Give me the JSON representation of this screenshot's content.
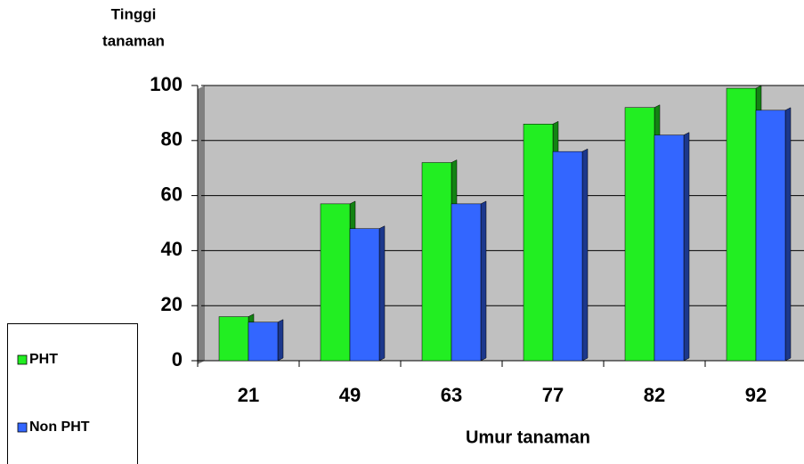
{
  "chart_data": {
    "type": "bar",
    "ylabel": [
      "Tinggi",
      "tanaman"
    ],
    "xlabel": "Umur tanaman",
    "categories": [
      "21",
      "49",
      "63",
      "77",
      "82",
      "92"
    ],
    "series": [
      {
        "name": "PHT",
        "color": "#22ee22",
        "values": [
          16,
          57,
          72,
          86,
          92,
          99
        ]
      },
      {
        "name": "Non PHT",
        "color": "#3366ff",
        "values": [
          14,
          48,
          57,
          76,
          82,
          91
        ]
      }
    ],
    "ylim": [
      0,
      100
    ],
    "yticks": [
      0,
      20,
      40,
      60,
      80,
      100
    ],
    "grid": true,
    "legend": "bottom-left"
  }
}
